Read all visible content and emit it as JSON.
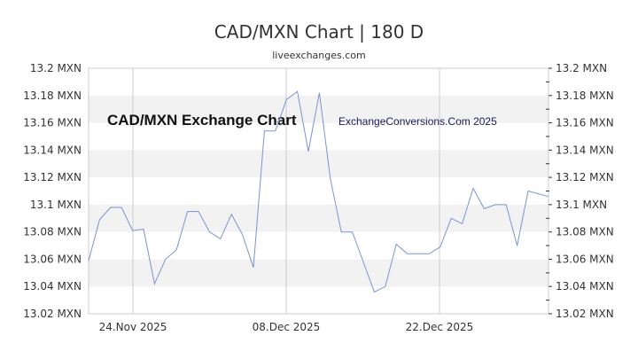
{
  "header": {
    "title": "CAD/MXN Chart | 180 D",
    "subtitle": "liveexchanges.com"
  },
  "watermarks": {
    "left": "CAD/MXN Exchange Chart",
    "right": "ExchangeConversions.Com 2025"
  },
  "colors": {
    "line": "#7b93d1",
    "band": "#f2f2f2",
    "grid": "#cccccc",
    "text": "#333333"
  },
  "chart_data": {
    "type": "line",
    "title": "CAD/MXN Chart | 180 D",
    "subtitle": "liveexchanges.com",
    "xlabel": "",
    "ylabel": "MXN",
    "ylim": [
      13.02,
      13.2
    ],
    "yticks": [
      "13.02 MXN",
      "13.04 MXN",
      "13.06 MXN",
      "13.08 MXN",
      "13.1 MXN",
      "13.12 MXN",
      "13.14 MXN",
      "13.16 MXN",
      "13.18 MXN",
      "13.2 MXN"
    ],
    "xticks": [
      "24.Nov 2025",
      "08.Dec 2025",
      "22.Dec 2025"
    ],
    "grid": true,
    "legend": "none",
    "annotations": [
      "CAD/MXN Exchange Chart",
      "ExchangeConversions.Com 2025"
    ],
    "series": [
      {
        "name": "CAD/MXN",
        "values": [
          13.059,
          13.089,
          13.098,
          13.098,
          13.081,
          13.082,
          13.042,
          13.06,
          13.067,
          13.095,
          13.095,
          13.08,
          13.075,
          13.093,
          13.078,
          13.054,
          13.154,
          13.154,
          13.177,
          13.183,
          13.139,
          13.182,
          13.119,
          13.08,
          13.08,
          13.058,
          13.036,
          13.04,
          13.071,
          13.064,
          13.064,
          13.064,
          13.069,
          13.09,
          13.086,
          13.112,
          13.097,
          13.1,
          13.1,
          13.07,
          13.11,
          13.106
        ]
      }
    ]
  }
}
